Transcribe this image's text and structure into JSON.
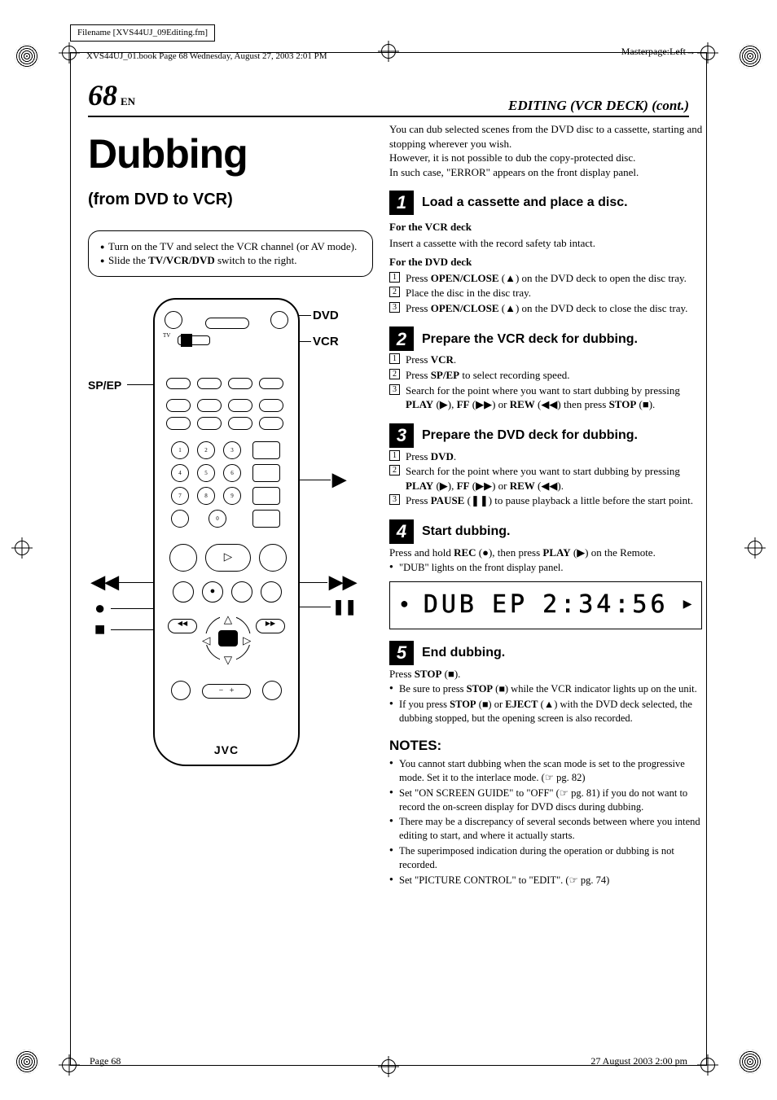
{
  "meta": {
    "filename_label": "Filename [XVS44UJ_09Editing.fm]",
    "book_meta": "XVS44UJ_01.book  Page 68  Wednesday, August 27, 2003  2:01 PM",
    "masterpage": "Masterpage:Left",
    "footer_left": "Page 68",
    "footer_right": "27 August 2003  2:00 pm"
  },
  "header": {
    "page_num": "68",
    "page_lang": "EN",
    "section": "EDITING (VCR DECK) (cont.)"
  },
  "left": {
    "title": "Dubbing",
    "subtitle": "(from DVD to VCR)",
    "intro_items": [
      "Turn on the TV and select the VCR channel (or AV mode).",
      "Slide the <b>TV/VCR/DVD</b> switch to the right."
    ],
    "remote_logo": "JVC",
    "callouts": {
      "dvd": "DVD",
      "vcr": "VCR",
      "spep": "SP/EP",
      "play": "▶",
      "rew": "◀◀",
      "ff": "▶▶",
      "rec": "●",
      "pause": "❚❚",
      "stop": "■"
    }
  },
  "right": {
    "lead": [
      "You can dub selected scenes from the DVD disc to a cassette, starting and stopping wherever you wish.",
      "However, it is not possible to dub the copy-protected disc.",
      "In such case, \"ERROR\" appears on the front display panel."
    ],
    "steps": [
      {
        "n": "1",
        "title": "Load a cassette and place a disc.",
        "blocks": [
          {
            "sub": "For the VCR deck",
            "text": "Insert a cassette with the record safety tab intact."
          },
          {
            "sub": "For the DVD deck",
            "list": [
              "Press <b>OPEN/CLOSE</b> (▲) on the DVD deck to open the disc tray.",
              "Place the disc in the disc tray.",
              "Press <b>OPEN/CLOSE</b> (▲) on the DVD deck to close the disc tray."
            ]
          }
        ]
      },
      {
        "n": "2",
        "title": "Prepare the VCR deck for dubbing.",
        "blocks": [
          {
            "list": [
              "Press <b>VCR</b>.",
              "Press <b>SP/EP</b> to select recording speed.",
              "Search for the point where you want to start dubbing by pressing <b>PLAY</b> (▶), <b>FF</b> (▶▶) or <b>REW</b> (◀◀) then press <b>STOP</b> (■)."
            ]
          }
        ]
      },
      {
        "n": "3",
        "title": "Prepare the DVD deck for dubbing.",
        "blocks": [
          {
            "list": [
              "Press <b>DVD</b>.",
              "Search for the point where you want to start dubbing by pressing <b>PLAY</b> (▶), <b>FF</b> (▶▶) or <b>REW</b> (◀◀).",
              "Press <b>PAUSE</b> (❚❚) to pause playback a little before the start point."
            ]
          }
        ]
      },
      {
        "n": "4",
        "title": "Start dubbing.",
        "text": "Press and hold <b>REC</b> (●), then press <b>PLAY</b> (▶) on the Remote.",
        "bullets": [
          "\"DUB\" lights on the front display panel."
        ],
        "display": {
          "left": "●",
          "seg1": "DUB",
          "seg2": "EP",
          "seg3": "2:34:56",
          "right": "▶"
        }
      },
      {
        "n": "5",
        "title": "End dubbing.",
        "text": "Press <b>STOP</b> (■).",
        "bullets": [
          "Be sure to press <b>STOP</b> (■) while the VCR indicator lights up on the unit.",
          "If you press <b>STOP</b> (■) or <b>EJECT</b> (▲) with the DVD deck selected, the dubbing stopped, but the opening screen is also recorded."
        ]
      }
    ],
    "notes_hd": "NOTES:",
    "notes": [
      "You cannot start dubbing when the scan mode is set to the progressive mode. Set it to the interlace mode. (☞ pg. 82)",
      "Set \"ON SCREEN GUIDE\" to \"OFF\" (☞ pg. 81) if you do not want to record the on-screen display for DVD discs during dubbing.",
      "There may be a discrepancy of several seconds between where you intend editing to start, and where it actually starts.",
      "The superimposed indication during the operation or dubbing is not recorded.",
      "Set \"PICTURE CONTROL\" to \"EDIT\". (☞ pg. 74)"
    ]
  }
}
